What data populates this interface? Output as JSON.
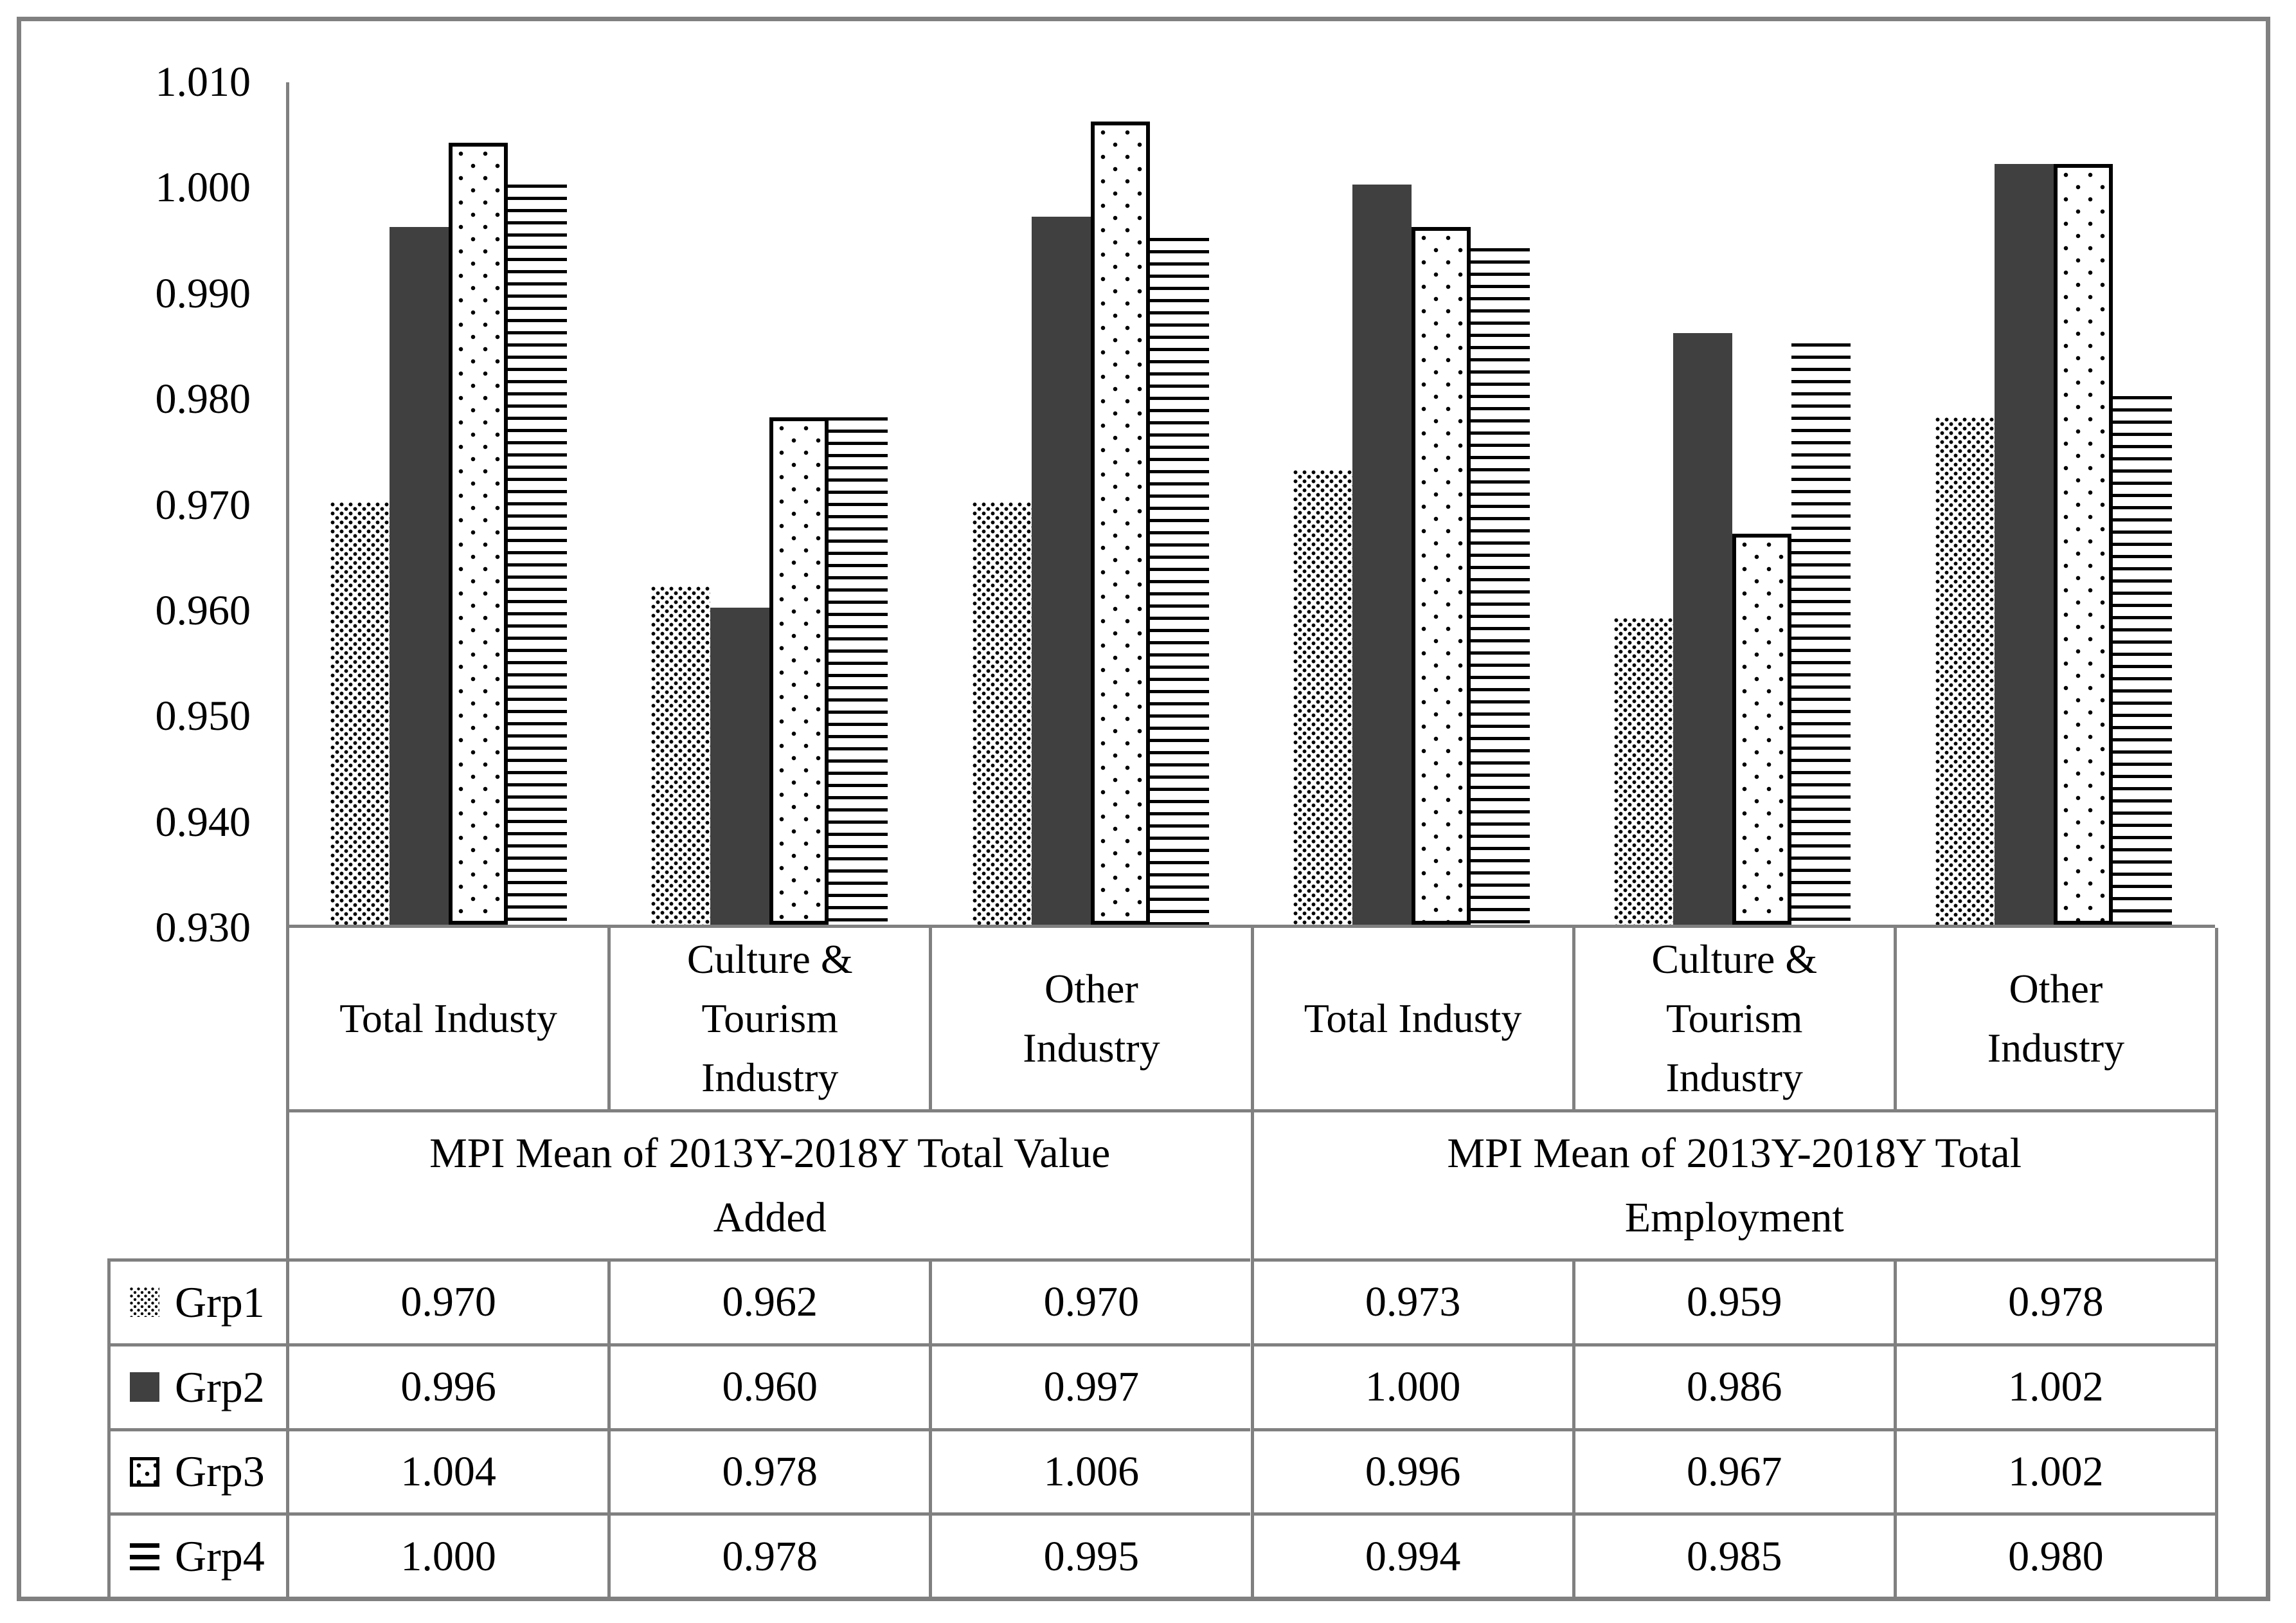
{
  "chart_data": {
    "type": "bar",
    "title": "",
    "xlabel": "",
    "ylabel": "",
    "ylim": [
      0.93,
      1.01
    ],
    "ytick_step": 0.01,
    "ytick_labels": [
      "1.010",
      "1.000",
      "0.990",
      "0.980",
      "0.970",
      "0.960",
      "0.950",
      "0.940",
      "0.930"
    ],
    "grid": false,
    "legend_position": "table-left",
    "group_headers": [
      "MPI Mean of 2013Y-2018Y Total Value Added",
      "MPI Mean of 2013Y-2018Y Total Employment"
    ],
    "categories": [
      "Total Industy",
      "Culture & Tourism Industry",
      "Other Industry",
      "Total Industy",
      "Culture & Tourism Industry",
      "Other Industry"
    ],
    "series": [
      {
        "name": "Grp1",
        "pattern": "stipple",
        "values": [
          0.97,
          0.962,
          0.97,
          0.973,
          0.959,
          0.978
        ]
      },
      {
        "name": "Grp2",
        "pattern": "solid",
        "values": [
          0.996,
          0.96,
          0.997,
          1.0,
          0.986,
          1.002
        ]
      },
      {
        "name": "Grp3",
        "pattern": "dots",
        "values": [
          1.004,
          0.978,
          1.006,
          0.996,
          0.967,
          1.002
        ]
      },
      {
        "name": "Grp4",
        "pattern": "hlines",
        "values": [
          1.0,
          0.978,
          0.995,
          0.994,
          0.985,
          0.98
        ]
      }
    ],
    "table_rows": [
      {
        "label": "Grp1",
        "pattern": "stipple",
        "cells": [
          "0.970",
          "0.962",
          "0.970",
          "0.973",
          "0.959",
          "0.978"
        ]
      },
      {
        "label": "Grp2",
        "pattern": "solid",
        "cells": [
          "0.996",
          "0.960",
          "0.997",
          "1.000",
          "0.986",
          "1.002"
        ]
      },
      {
        "label": "Grp3",
        "pattern": "dots",
        "cells": [
          "1.004",
          "0.978",
          "1.006",
          "0.996",
          "0.967",
          "1.002"
        ]
      },
      {
        "label": "Grp4",
        "pattern": "hlines",
        "cells": [
          "1.000",
          "0.978",
          "0.995",
          "0.994",
          "0.985",
          "0.980"
        ]
      }
    ],
    "colors": {
      "bar_solid": "#404040",
      "pattern_ink": "#000000",
      "axis_line": "#808080",
      "table_grid": "#808080",
      "background": "#ffffff"
    }
  }
}
